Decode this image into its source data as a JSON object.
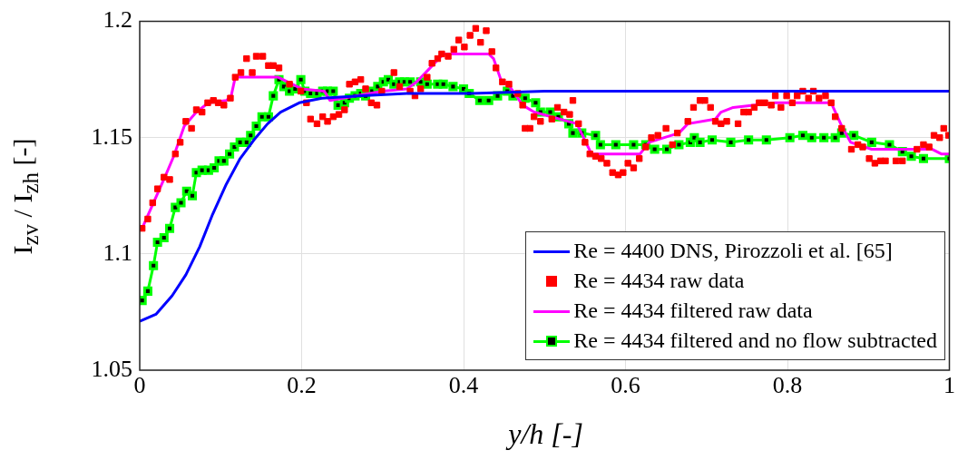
{
  "chart_data": {
    "type": "line",
    "xlabel": "y/h [-]",
    "ylabel": "I$_{zv}$ / I$_{zh}$ [-]",
    "xlim": [
      0,
      1
    ],
    "xticks": [
      0,
      0.2,
      0.4,
      0.6,
      0.8,
      1
    ],
    "ylim": [
      1.05,
      1.2
    ],
    "yticks": [
      1.05,
      1.1,
      1.15,
      1.2
    ],
    "grid": true,
    "legend": "bottom right",
    "line_style": "solid",
    "series": [
      {
        "name": "Re = 4400 DNS, Pirozzoli et al. [65]",
        "type": "line",
        "marker": "none",
        "color": "#0000ff",
        "x": [
          0,
          0.02,
          0.04,
          0.057,
          0.074,
          0.09,
          0.107,
          0.124,
          0.141,
          0.158,
          0.174,
          0.197,
          0.225,
          0.275,
          0.33,
          0.41,
          0.5,
          1
        ],
        "values": [
          1.071,
          1.074,
          1.082,
          1.091,
          1.103,
          1.117,
          1.13,
          1.141,
          1.149,
          1.156,
          1.161,
          1.165,
          1.167,
          1.168,
          1.169,
          1.169,
          1.17,
          1.17
        ]
      },
      {
        "name": "Re = 4434 raw data",
        "type": "scatter",
        "marker": "square",
        "color": "#ff0000",
        "x": [
          0.003,
          0.01,
          0.016,
          0.022,
          0.03,
          0.037,
          0.044,
          0.05,
          0.057,
          0.064,
          0.07,
          0.077,
          0.084,
          0.091,
          0.097,
          0.104,
          0.112,
          0.118,
          0.125,
          0.132,
          0.139,
          0.144,
          0.152,
          0.159,
          0.165,
          0.172,
          0.185,
          0.199,
          0.206,
          0.211,
          0.219,
          0.226,
          0.232,
          0.239,
          0.246,
          0.253,
          0.259,
          0.266,
          0.273,
          0.279,
          0.286,
          0.293,
          0.299,
          0.314,
          0.321,
          0.334,
          0.34,
          0.347,
          0.355,
          0.361,
          0.368,
          0.373,
          0.381,
          0.388,
          0.394,
          0.401,
          0.408,
          0.415,
          0.421,
          0.428,
          0.435,
          0.44,
          0.448,
          0.456,
          0.467,
          0.473,
          0.476,
          0.482,
          0.487,
          0.495,
          0.509,
          0.516,
          0.524,
          0.531,
          0.535,
          0.542,
          0.55,
          0.556,
          0.563,
          0.57,
          0.577,
          0.584,
          0.591,
          0.597,
          0.603,
          0.61,
          0.617,
          0.625,
          0.632,
          0.64,
          0.65,
          0.658,
          0.664,
          0.677,
          0.684,
          0.692,
          0.698,
          0.705,
          0.711,
          0.718,
          0.725,
          0.739,
          0.746,
          0.752,
          0.759,
          0.765,
          0.772,
          0.78,
          0.785,
          0.792,
          0.799,
          0.806,
          0.812,
          0.819,
          0.826,
          0.832,
          0.839,
          0.847,
          0.854,
          0.859,
          0.867,
          0.879,
          0.887,
          0.893,
          0.901,
          0.908,
          0.915,
          0.921,
          0.934,
          0.942,
          0.96,
          0.968,
          0.975,
          0.981,
          0.988,
          0.993,
          0.999
        ],
        "values": [
          1.111,
          1.115,
          1.122,
          1.128,
          1.133,
          1.132,
          1.143,
          1.148,
          1.157,
          1.154,
          1.162,
          1.161,
          1.165,
          1.166,
          1.165,
          1.164,
          1.167,
          1.176,
          1.178,
          1.184,
          1.178,
          1.185,
          1.185,
          1.181,
          1.181,
          1.18,
          1.173,
          1.17,
          1.165,
          1.158,
          1.156,
          1.159,
          1.157,
          1.159,
          1.16,
          1.162,
          1.173,
          1.174,
          1.175,
          1.171,
          1.165,
          1.164,
          1.17,
          1.178,
          1.172,
          1.17,
          1.168,
          1.171,
          1.176,
          1.182,
          1.184,
          1.186,
          1.185,
          1.188,
          1.192,
          1.189,
          1.194,
          1.197,
          1.191,
          1.196,
          1.187,
          1.18,
          1.174,
          1.173,
          1.169,
          1.164,
          1.154,
          1.154,
          1.159,
          1.157,
          1.158,
          1.163,
          1.161,
          1.16,
          1.166,
          1.156,
          1.148,
          1.143,
          1.142,
          1.141,
          1.139,
          1.135,
          1.134,
          1.135,
          1.139,
          1.137,
          1.141,
          1.146,
          1.15,
          1.151,
          1.154,
          1.147,
          1.152,
          1.157,
          1.163,
          1.166,
          1.166,
          1.163,
          1.157,
          1.156,
          1.157,
          1.156,
          1.161,
          1.161,
          1.163,
          1.165,
          1.165,
          1.164,
          1.168,
          1.163,
          1.168,
          1.165,
          1.168,
          1.17,
          1.167,
          1.17,
          1.167,
          1.168,
          1.165,
          1.159,
          1.154,
          1.145,
          1.147,
          1.146,
          1.141,
          1.139,
          1.14,
          1.14,
          1.14,
          1.14,
          1.145,
          1.147,
          1.146,
          1.151,
          1.15,
          1.154,
          1.151
        ]
      },
      {
        "name": "Re = 4434 filtered raw data",
        "type": "line",
        "marker": "none",
        "color": "#ff00ff",
        "x": [
          0.003,
          0.031,
          0.042,
          0.055,
          0.07,
          0.085,
          0.107,
          0.113,
          0.118,
          0.171,
          0.2,
          0.228,
          0.235,
          0.3,
          0.33,
          0.342,
          0.356,
          0.375,
          0.431,
          0.437,
          0.446,
          0.457,
          0.473,
          0.487,
          0.54,
          0.551,
          0.558,
          0.618,
          0.629,
          0.666,
          0.677,
          0.711,
          0.718,
          0.733,
          0.785,
          0.854,
          0.867,
          0.878,
          0.904,
          0.979,
          0.99,
          1
        ],
        "values": [
          1.111,
          1.133,
          1.142,
          1.155,
          1.161,
          1.165,
          1.166,
          1.168,
          1.176,
          1.176,
          1.171,
          1.17,
          1.166,
          1.17,
          1.171,
          1.174,
          1.179,
          1.186,
          1.186,
          1.184,
          1.175,
          1.172,
          1.164,
          1.161,
          1.156,
          1.148,
          1.143,
          1.143,
          1.148,
          1.152,
          1.156,
          1.158,
          1.161,
          1.163,
          1.165,
          1.165,
          1.155,
          1.148,
          1.145,
          1.145,
          1.143,
          1.143
        ]
      },
      {
        "name": "Re = 4434 filtered and no flow subtracted",
        "type": "line",
        "marker": "square",
        "color": "#00ff00",
        "x": [
          0.003,
          0.01,
          0.017,
          0.022,
          0.03,
          0.037,
          0.044,
          0.051,
          0.058,
          0.065,
          0.07,
          0.077,
          0.085,
          0.092,
          0.098,
          0.104,
          0.111,
          0.117,
          0.124,
          0.132,
          0.137,
          0.144,
          0.151,
          0.159,
          0.165,
          0.172,
          0.178,
          0.185,
          0.192,
          0.199,
          0.204,
          0.211,
          0.219,
          0.226,
          0.232,
          0.239,
          0.245,
          0.253,
          0.259,
          0.266,
          0.273,
          0.279,
          0.287,
          0.294,
          0.301,
          0.307,
          0.314,
          0.321,
          0.327,
          0.334,
          0.347,
          0.355,
          0.368,
          0.375,
          0.387,
          0.4,
          0.407,
          0.42,
          0.431,
          0.442,
          0.454,
          0.461,
          0.476,
          0.489,
          0.495,
          0.507,
          0.517,
          0.53,
          0.535,
          0.546,
          0.563,
          0.569,
          0.588,
          0.61,
          0.625,
          0.636,
          0.651,
          0.666,
          0.68,
          0.685,
          0.692,
          0.707,
          0.73,
          0.752,
          0.774,
          0.803,
          0.819,
          0.83,
          0.845,
          0.859,
          0.867,
          0.882,
          0.904,
          0.926,
          0.942,
          0.953,
          0.968,
          1
        ],
        "values": [
          1.08,
          1.084,
          1.095,
          1.105,
          1.107,
          1.111,
          1.12,
          1.122,
          1.127,
          1.125,
          1.135,
          1.136,
          1.136,
          1.137,
          1.14,
          1.14,
          1.143,
          1.146,
          1.148,
          1.148,
          1.151,
          1.155,
          1.159,
          1.159,
          1.168,
          1.175,
          1.172,
          1.17,
          1.171,
          1.175,
          1.17,
          1.169,
          1.169,
          1.17,
          1.17,
          1.17,
          1.164,
          1.165,
          1.167,
          1.168,
          1.169,
          1.168,
          1.17,
          1.172,
          1.174,
          1.175,
          1.173,
          1.174,
          1.174,
          1.174,
          1.174,
          1.173,
          1.173,
          1.173,
          1.172,
          1.171,
          1.169,
          1.166,
          1.166,
          1.168,
          1.17,
          1.168,
          1.167,
          1.165,
          1.161,
          1.161,
          1.159,
          1.156,
          1.152,
          1.152,
          1.151,
          1.147,
          1.147,
          1.147,
          1.147,
          1.145,
          1.145,
          1.147,
          1.148,
          1.15,
          1.148,
          1.149,
          1.148,
          1.149,
          1.149,
          1.15,
          1.151,
          1.15,
          1.15,
          1.15,
          1.152,
          1.151,
          1.148,
          1.147,
          1.144,
          1.142,
          1.141,
          1.141
        ]
      }
    ]
  }
}
